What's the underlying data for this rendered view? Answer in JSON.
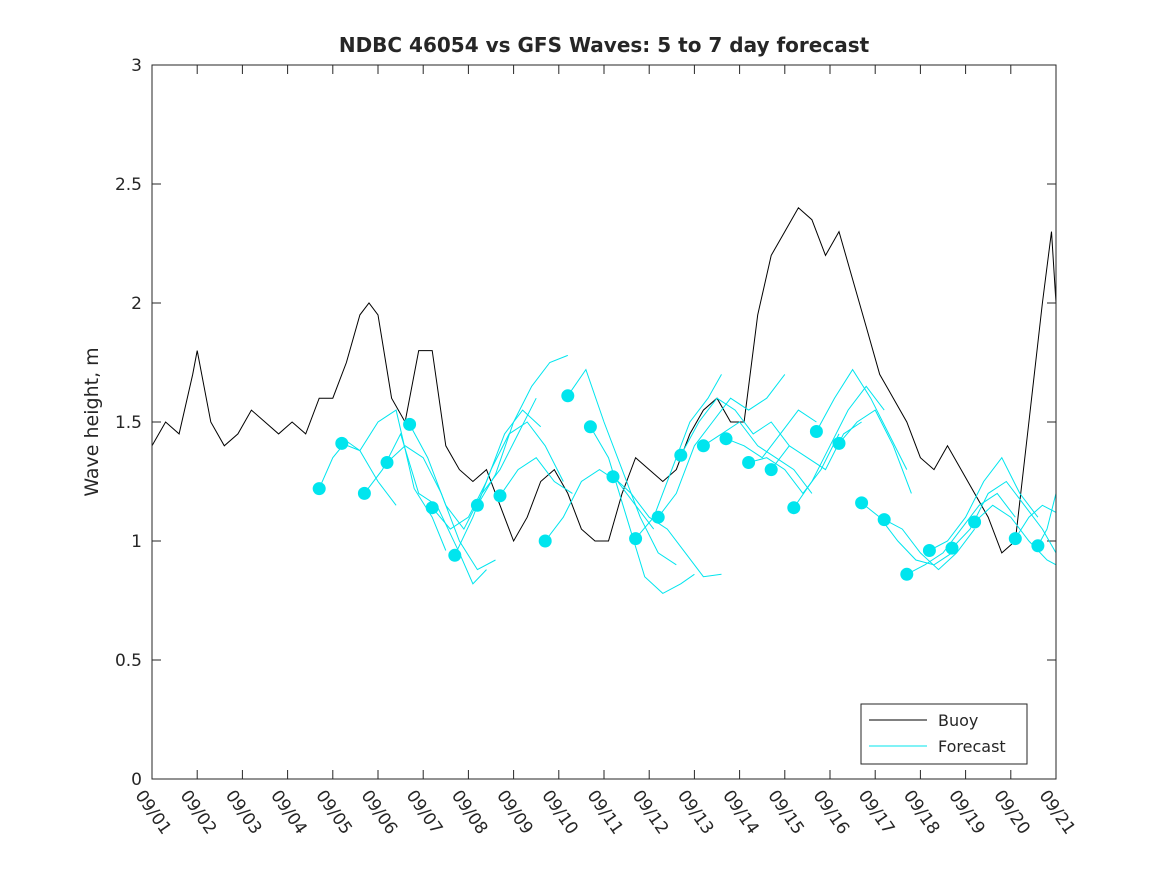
{
  "chart_data": {
    "type": "line",
    "title": "NDBC 46054 vs GFS Waves: 5 to 7 day forecast",
    "xlabel": "",
    "ylabel": "Wave height, m",
    "xlim": [
      0,
      20
    ],
    "ylim": [
      0,
      3
    ],
    "yticks": [
      0,
      0.5,
      1,
      1.5,
      2,
      2.5,
      3
    ],
    "yticklabels": [
      "0",
      "0.5",
      "1",
      "1.5",
      "2",
      "2.5",
      "3"
    ],
    "xticks": [
      0,
      1,
      2,
      3,
      4,
      5,
      6,
      7,
      8,
      9,
      10,
      11,
      12,
      13,
      14,
      15,
      16,
      17,
      18,
      19,
      20
    ],
    "xticklabels": [
      "09/01",
      "09/02",
      "09/03",
      "09/04",
      "09/05",
      "09/06",
      "09/07",
      "09/08",
      "09/09",
      "09/10",
      "09/11",
      "09/12",
      "09/13",
      "09/14",
      "09/15",
      "09/16",
      "09/17",
      "09/18",
      "09/19",
      "09/20",
      "09/21"
    ],
    "legend": {
      "position": "bottom-right",
      "entries": [
        "Buoy",
        "Forecast"
      ]
    },
    "colors": {
      "buoy": "#000000",
      "forecast": "#00e5ee",
      "axes": "#262626"
    },
    "series": [
      {
        "name": "Buoy",
        "x": [
          0,
          0.3,
          0.6,
          0.9,
          1.0,
          1.3,
          1.6,
          1.9,
          2.2,
          2.5,
          2.8,
          3.1,
          3.4,
          3.7,
          4.0,
          4.3,
          4.6,
          4.8,
          5.0,
          5.3,
          5.6,
          5.9,
          6.2,
          6.5,
          6.8,
          7.1,
          7.4,
          7.7,
          8.0,
          8.3,
          8.6,
          8.9,
          9.2,
          9.5,
          9.8,
          10.1,
          10.4,
          10.7,
          11.0,
          11.3,
          11.6,
          11.9,
          12.2,
          12.5,
          12.8,
          13.1,
          13.4,
          13.7,
          14.0,
          14.3,
          14.6,
          14.9,
          15.2,
          15.5,
          15.8,
          16.1,
          16.4,
          16.7,
          17.0,
          17.3,
          17.6,
          17.9,
          18.2,
          18.5,
          18.8,
          19.1,
          19.4,
          19.7,
          19.9,
          20.0
        ],
        "values": [
          1.4,
          1.5,
          1.45,
          1.7,
          1.8,
          1.5,
          1.4,
          1.45,
          1.55,
          1.5,
          1.45,
          1.5,
          1.45,
          1.6,
          1.6,
          1.75,
          1.95,
          2.0,
          1.95,
          1.6,
          1.5,
          1.8,
          1.8,
          1.4,
          1.3,
          1.25,
          1.3,
          1.15,
          1.0,
          1.1,
          1.25,
          1.3,
          1.2,
          1.05,
          1.0,
          1.0,
          1.2,
          1.35,
          1.3,
          1.25,
          1.3,
          1.45,
          1.55,
          1.6,
          1.5,
          1.5,
          1.95,
          2.2,
          2.3,
          2.4,
          2.35,
          2.2,
          2.3,
          2.1,
          1.9,
          1.7,
          1.6,
          1.5,
          1.35,
          1.3,
          1.4,
          1.3,
          1.2,
          1.1,
          0.95,
          1.0,
          1.5,
          2.0,
          2.3,
          2.0
        ]
      },
      {
        "name": "Forecast",
        "tracks": [
          {
            "x": [
              3.7,
              4.0,
              4.3,
              4.6,
              5.0,
              5.4
            ],
            "values": [
              1.22,
              1.35,
              1.42,
              1.38,
              1.25,
              1.15
            ]
          },
          {
            "x": [
              4.2,
              4.6,
              5.0,
              5.4,
              5.8,
              6.2,
              6.5
            ],
            "values": [
              1.41,
              1.38,
              1.5,
              1.55,
              1.22,
              1.1,
              0.96
            ]
          },
          {
            "x": [
              4.7,
              5.1,
              5.5,
              5.9,
              6.3,
              6.8,
              7.1,
              7.4
            ],
            "values": [
              1.2,
              1.3,
              1.45,
              1.2,
              1.15,
              0.95,
              0.82,
              0.88
            ]
          },
          {
            "x": [
              5.2,
              5.6,
              6.0,
              6.4,
              6.8,
              7.2,
              7.6
            ],
            "values": [
              1.33,
              1.4,
              1.35,
              1.2,
              1.0,
              0.88,
              0.92
            ]
          },
          {
            "x": [
              5.7,
              6.1,
              6.5,
              6.9,
              7.3,
              7.7,
              8.1,
              8.5
            ],
            "values": [
              1.49,
              1.35,
              1.15,
              1.05,
              1.2,
              1.3,
              1.45,
              1.6
            ]
          },
          {
            "x": [
              6.2,
              6.6,
              7.0,
              7.4,
              7.8,
              8.2,
              8.6
            ],
            "values": [
              1.14,
              1.05,
              1.1,
              1.25,
              1.45,
              1.55,
              1.48
            ]
          },
          {
            "x": [
              6.7,
              7.1,
              7.5,
              7.9,
              8.3,
              8.7,
              9.1
            ],
            "values": [
              0.94,
              1.1,
              1.3,
              1.45,
              1.5,
              1.4,
              1.25
            ]
          },
          {
            "x": [
              7.2,
              7.6,
              8.0,
              8.4,
              8.8,
              9.2
            ],
            "values": [
              1.15,
              1.28,
              1.5,
              1.65,
              1.75,
              1.78
            ]
          },
          {
            "x": [
              7.7,
              8.1,
              8.5,
              8.9,
              9.3
            ],
            "values": [
              1.19,
              1.3,
              1.35,
              1.25,
              1.2
            ]
          },
          {
            "x": [
              8.7,
              9.1,
              9.5,
              9.9,
              10.3,
              10.7,
              11.1
            ],
            "values": [
              1.0,
              1.1,
              1.25,
              1.3,
              1.25,
              1.15,
              1.05
            ]
          },
          {
            "x": [
              9.2,
              9.6,
              10.0,
              10.4,
              10.8,
              11.2,
              11.6
            ],
            "values": [
              1.61,
              1.72,
              1.5,
              1.3,
              1.1,
              0.95,
              0.9
            ]
          },
          {
            "x": [
              9.7,
              10.1,
              10.5,
              10.9,
              11.3,
              11.7,
              12.0
            ],
            "values": [
              1.48,
              1.35,
              1.1,
              0.85,
              0.78,
              0.82,
              0.86
            ]
          },
          {
            "x": [
              10.2,
              10.6,
              11.0,
              11.4,
              11.8,
              12.2,
              12.6
            ],
            "values": [
              1.27,
              1.2,
              1.1,
              1.05,
              0.95,
              0.85,
              0.86
            ]
          },
          {
            "x": [
              10.7,
              11.1,
              11.5,
              11.9,
              12.3,
              12.6
            ],
            "values": [
              1.01,
              1.1,
              1.3,
              1.5,
              1.6,
              1.7
            ]
          },
          {
            "x": [
              11.2,
              11.6,
              12.0,
              12.4,
              12.8,
              13.2,
              13.6,
              14.0
            ],
            "values": [
              1.1,
              1.2,
              1.4,
              1.5,
              1.6,
              1.55,
              1.6,
              1.7
            ]
          },
          {
            "x": [
              11.7,
              12.1,
              12.5,
              12.9,
              13.3,
              13.7,
              14.1
            ],
            "values": [
              1.36,
              1.5,
              1.6,
              1.55,
              1.45,
              1.5,
              1.4
            ]
          },
          {
            "x": [
              12.2,
              12.6,
              13.0,
              13.4,
              13.8,
              14.2,
              14.6
            ],
            "values": [
              1.4,
              1.45,
              1.5,
              1.4,
              1.35,
              1.3,
              1.2
            ]
          },
          {
            "x": [
              12.7,
              13.1,
              13.5,
              13.9,
              14.3,
              14.7
            ],
            "values": [
              1.43,
              1.4,
              1.35,
              1.45,
              1.55,
              1.5
            ]
          },
          {
            "x": [
              13.2,
              13.6,
              14.0,
              14.4,
              14.8,
              15.2
            ],
            "values": [
              1.33,
              1.35,
              1.3,
              1.2,
              1.3,
              1.45
            ]
          },
          {
            "x": [
              13.7,
              14.1,
              14.5,
              14.9,
              15.3,
              15.7
            ],
            "values": [
              1.3,
              1.4,
              1.35,
              1.3,
              1.45,
              1.5
            ]
          },
          {
            "x": [
              14.2,
              14.6,
              15.0,
              15.4,
              15.8,
              16.2
            ],
            "values": [
              1.14,
              1.25,
              1.4,
              1.55,
              1.65,
              1.55
            ]
          },
          {
            "x": [
              14.7,
              15.1,
              15.5,
              15.9,
              16.3,
              16.7
            ],
            "values": [
              1.46,
              1.6,
              1.72,
              1.6,
              1.45,
              1.3
            ]
          },
          {
            "x": [
              15.2,
              15.6,
              16.0,
              16.4,
              16.8
            ],
            "values": [
              1.41,
              1.5,
              1.55,
              1.4,
              1.2
            ]
          },
          {
            "x": [
              15.7,
              16.1,
              16.5,
              16.9,
              17.3,
              17.7
            ],
            "values": [
              1.16,
              1.1,
              1.0,
              0.92,
              0.9,
              0.95
            ]
          },
          {
            "x": [
              16.2,
              16.6,
              17.0,
              17.4,
              17.8,
              18.2
            ],
            "values": [
              1.09,
              1.05,
              0.95,
              0.88,
              0.95,
              1.05
            ]
          },
          {
            "x": [
              16.7,
              17.1,
              17.5,
              17.9,
              18.3,
              18.7,
              19.1
            ],
            "values": [
              0.86,
              0.9,
              0.95,
              1.05,
              1.15,
              1.2,
              1.1
            ]
          },
          {
            "x": [
              17.2,
              17.6,
              18.0,
              18.4,
              18.8,
              19.2,
              19.6
            ],
            "values": [
              0.96,
              1.0,
              1.1,
              1.25,
              1.35,
              1.2,
              1.1
            ]
          },
          {
            "x": [
              17.7,
              18.1,
              18.5,
              18.9,
              19.3,
              19.7,
              20.0
            ],
            "values": [
              0.97,
              1.05,
              1.2,
              1.25,
              1.15,
              1.05,
              0.95
            ]
          },
          {
            "x": [
              18.2,
              18.6,
              19.0,
              19.4,
              19.8,
              20.0
            ],
            "values": [
              1.08,
              1.15,
              1.1,
              1.0,
              0.92,
              0.9
            ]
          },
          {
            "x": [
              19.1,
              19.4,
              19.7,
              20.0
            ],
            "values": [
              1.01,
              1.1,
              1.15,
              1.12
            ]
          },
          {
            "x": [
              19.6,
              19.8,
              20.0
            ],
            "values": [
              0.98,
              1.05,
              1.2
            ]
          }
        ],
        "markers": {
          "x": [
            3.7,
            4.2,
            4.7,
            5.2,
            5.7,
            6.2,
            6.7,
            7.2,
            7.7,
            8.7,
            9.2,
            9.7,
            10.2,
            10.7,
            11.2,
            11.7,
            12.2,
            12.7,
            13.2,
            13.7,
            14.2,
            14.7,
            15.2,
            15.7,
            16.2,
            16.7,
            17.2,
            17.7,
            18.2,
            19.1,
            19.6
          ],
          "values": [
            1.22,
            1.41,
            1.2,
            1.33,
            1.49,
            1.14,
            0.94,
            1.15,
            1.19,
            1.0,
            1.61,
            1.48,
            1.27,
            1.01,
            1.1,
            1.36,
            1.4,
            1.43,
            1.33,
            1.3,
            1.14,
            1.46,
            1.41,
            1.16,
            1.09,
            0.86,
            0.96,
            0.97,
            1.08,
            1.01,
            0.98
          ]
        }
      }
    ]
  }
}
